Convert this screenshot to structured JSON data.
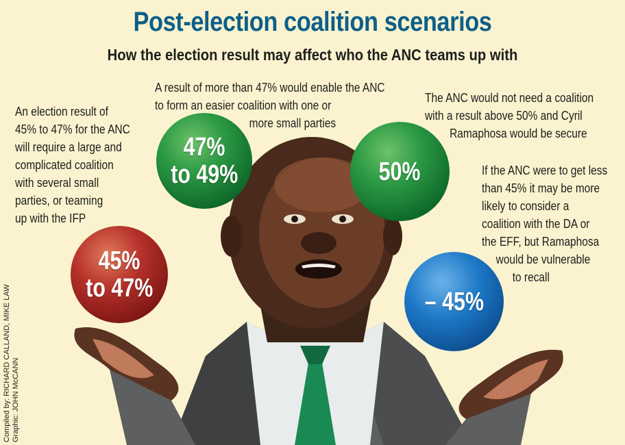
{
  "header": {
    "title": "Post-election coalition scenarios",
    "subtitle": "How the election result may affect who the ANC teams up with"
  },
  "notes": {
    "left": [
      "An election result of",
      "45% to 47% for the ANC",
      "will require a large and",
      "complicated coalition",
      "with several small",
      "parties, or teaming",
      "up with the IFP"
    ],
    "top_center": [
      "A result of more than 47% would enable the ANC",
      "to form an easier coalition with one or",
      "more small parties"
    ],
    "top_right": [
      "The ANC would not need a coalition",
      "with a result above 50% and Cyril",
      "Ramaphosa would be secure"
    ],
    "right": [
      "If the ANC were to get less",
      "than 45% it may be more",
      "likely to consider a",
      "coalition with the DA or",
      "the EFF, but Ramaphosa",
      "would be vulnerable",
      "to recall"
    ]
  },
  "balls": {
    "b47": [
      "47%",
      "to 49%"
    ],
    "b50": [
      "50%"
    ],
    "b45": [
      "45%",
      "to 47%"
    ],
    "bminus": [
      "– 45%"
    ]
  },
  "colors": {
    "title": "#0d5f88",
    "background": "#fbf3cf",
    "green": "#2c9a44",
    "red": "#b5302a",
    "blue": "#1d78c6",
    "tie": "#1a8a55"
  },
  "credits": [
    "Compiled by: RICHARD CALLAND, MIKE LAW",
    "Graphic: JOHN McCANN"
  ]
}
